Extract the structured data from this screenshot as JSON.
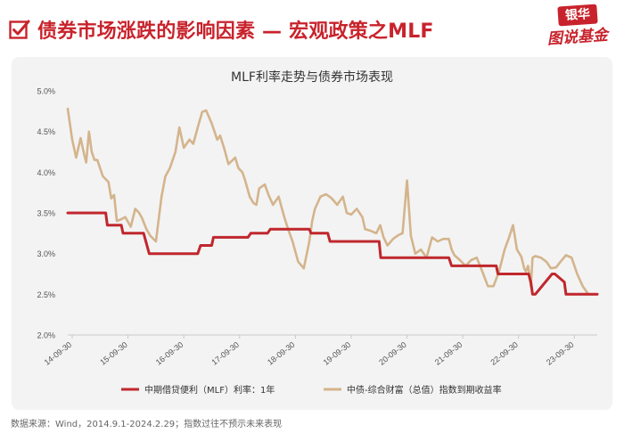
{
  "header": {
    "title": "债券市场涨跌的影响因素 — 宏观政策之MLF",
    "logo_top": "银华",
    "logo_bottom": "图说基金"
  },
  "colors": {
    "accent": "#C8232C",
    "mlf_line": "#C0272D",
    "yield_line": "#D4B48C",
    "panel": "#f3f3f3"
  },
  "chart_data": {
    "type": "line",
    "title": "MLF利率走势与债券市场表现",
    "x_ticks": [
      "14-09-30",
      "15-09-30",
      "16-09-30",
      "17-09-30",
      "18-09-30",
      "19-09-30",
      "20-09-30",
      "21-09-30",
      "22-09-30",
      "23-09-30"
    ],
    "y_ticks": [
      "2.0%",
      "2.5%",
      "3.0%",
      "3.5%",
      "4.0%",
      "4.5%",
      "5.0%"
    ],
    "ylim": [
      2.0,
      5.0
    ],
    "xlim": [
      2014.67,
      2024.16
    ],
    "grid": false,
    "legend_position": "bottom",
    "series": [
      {
        "name": "中期借贷便利（MLF）利率：1年",
        "x": [
          2014.67,
          2015.1,
          2015.13,
          2015.35,
          2015.38,
          2015.5,
          2015.53,
          2015.63,
          2015.66,
          2016.0,
          2016.03,
          2016.13,
          2016.16,
          2017.0,
          2017.05,
          2017.25,
          2017.28,
          2017.9,
          2017.95,
          2018.25,
          2018.3,
          2019.0,
          2019.03,
          2019.33,
          2019.37,
          2019.6,
          2019.63,
          2020.25,
          2020.28,
          2020.55,
          2020.6,
          2021.0,
          2021.03,
          2021.5,
          2021.55,
          2022.35,
          2022.38,
          2022.55,
          2022.6,
          2022.93,
          2022.97,
          2023.0,
          2023.05,
          2023.35,
          2023.4,
          2023.57,
          2023.6,
          2024.16
        ],
        "y": [
          3.5,
          3.5,
          3.5,
          3.5,
          3.35,
          3.35,
          3.35,
          3.35,
          3.25,
          3.25,
          3.25,
          3.0,
          3.0,
          3.0,
          3.1,
          3.1,
          3.2,
          3.2,
          3.25,
          3.25,
          3.3,
          3.3,
          3.25,
          3.25,
          3.15,
          3.15,
          3.15,
          3.15,
          2.95,
          2.95,
          2.95,
          2.95,
          2.95,
          2.95,
          2.85,
          2.85,
          2.75,
          2.75,
          2.75,
          2.75,
          2.65,
          2.5,
          2.5,
          2.75,
          2.75,
          2.65,
          2.5,
          2.5
        ]
      },
      {
        "name": "中债-综合财富（总值）指数到期收益率",
        "x": [
          2014.67,
          2014.75,
          2014.82,
          2014.9,
          2014.97,
          2015.0,
          2015.05,
          2015.1,
          2015.15,
          2015.2,
          2015.3,
          2015.4,
          2015.45,
          2015.5,
          2015.55,
          2015.62,
          2015.7,
          2015.8,
          2015.88,
          2015.95,
          2016.0,
          2016.08,
          2016.15,
          2016.25,
          2016.35,
          2016.42,
          2016.5,
          2016.6,
          2016.67,
          2016.75,
          2016.85,
          2016.92,
          2017.0,
          2017.08,
          2017.15,
          2017.25,
          2017.35,
          2017.4,
          2017.47,
          2017.55,
          2017.67,
          2017.73,
          2017.8,
          2017.85,
          2017.93,
          2018.0,
          2018.05,
          2018.1,
          2018.2,
          2018.27,
          2018.35,
          2018.45,
          2018.55,
          2018.62,
          2018.7,
          2018.8,
          2018.9,
          2019.0,
          2019.05,
          2019.1,
          2019.2,
          2019.3,
          2019.4,
          2019.5,
          2019.6,
          2019.67,
          2019.75,
          2019.85,
          2019.95,
          2020.0,
          2020.1,
          2020.2,
          2020.27,
          2020.33,
          2020.4,
          2020.5,
          2020.6,
          2020.67,
          2020.75,
          2020.82,
          2020.9,
          2021.0,
          2021.1,
          2021.2,
          2021.3,
          2021.4,
          2021.5,
          2021.55,
          2021.6,
          2021.7,
          2021.8,
          2021.9,
          2022.0,
          2022.1,
          2022.2,
          2022.3,
          2022.4,
          2022.5,
          2022.58,
          2022.65,
          2022.72,
          2022.8,
          2022.85,
          2022.88,
          2022.92,
          2022.97,
          2023.0,
          2023.05,
          2023.15,
          2023.25,
          2023.33,
          2023.42,
          2023.5,
          2023.6,
          2023.7,
          2023.8,
          2023.9,
          2024.0,
          2024.08,
          2024.16
        ],
        "y": [
          4.78,
          4.4,
          4.18,
          4.42,
          4.2,
          4.12,
          4.5,
          4.25,
          4.15,
          4.15,
          3.95,
          3.88,
          3.68,
          3.72,
          3.4,
          3.42,
          3.45,
          3.33,
          3.55,
          3.5,
          3.44,
          3.3,
          3.22,
          3.15,
          3.7,
          3.95,
          4.05,
          4.25,
          4.55,
          4.3,
          4.4,
          4.35,
          4.55,
          4.74,
          4.76,
          4.6,
          4.4,
          4.45,
          4.3,
          4.1,
          4.18,
          4.05,
          4.0,
          3.9,
          3.7,
          3.62,
          3.6,
          3.8,
          3.85,
          3.72,
          3.6,
          3.7,
          3.45,
          3.3,
          3.15,
          2.9,
          2.82,
          3.15,
          3.4,
          3.55,
          3.7,
          3.73,
          3.68,
          3.6,
          3.7,
          3.5,
          3.48,
          3.55,
          3.45,
          3.3,
          3.28,
          3.25,
          3.35,
          3.2,
          3.1,
          3.18,
          3.23,
          3.25,
          3.9,
          3.22,
          3.0,
          3.05,
          2.95,
          3.2,
          3.15,
          3.18,
          3.18,
          3.05,
          2.98,
          2.92,
          2.85,
          2.92,
          2.95,
          2.78,
          2.6,
          2.6,
          2.78,
          3.05,
          3.2,
          3.35,
          3.05,
          2.96,
          2.82,
          2.78,
          2.85,
          2.6,
          2.95,
          2.97,
          2.95,
          2.9,
          2.82,
          2.83,
          2.9,
          2.98,
          2.95,
          2.75,
          2.6,
          2.5,
          2.5,
          2.5
        ]
      }
    ]
  },
  "source_note": "数据来源：Wind，2014.9.1-2024.2.29；指数过往不预示未来表现"
}
